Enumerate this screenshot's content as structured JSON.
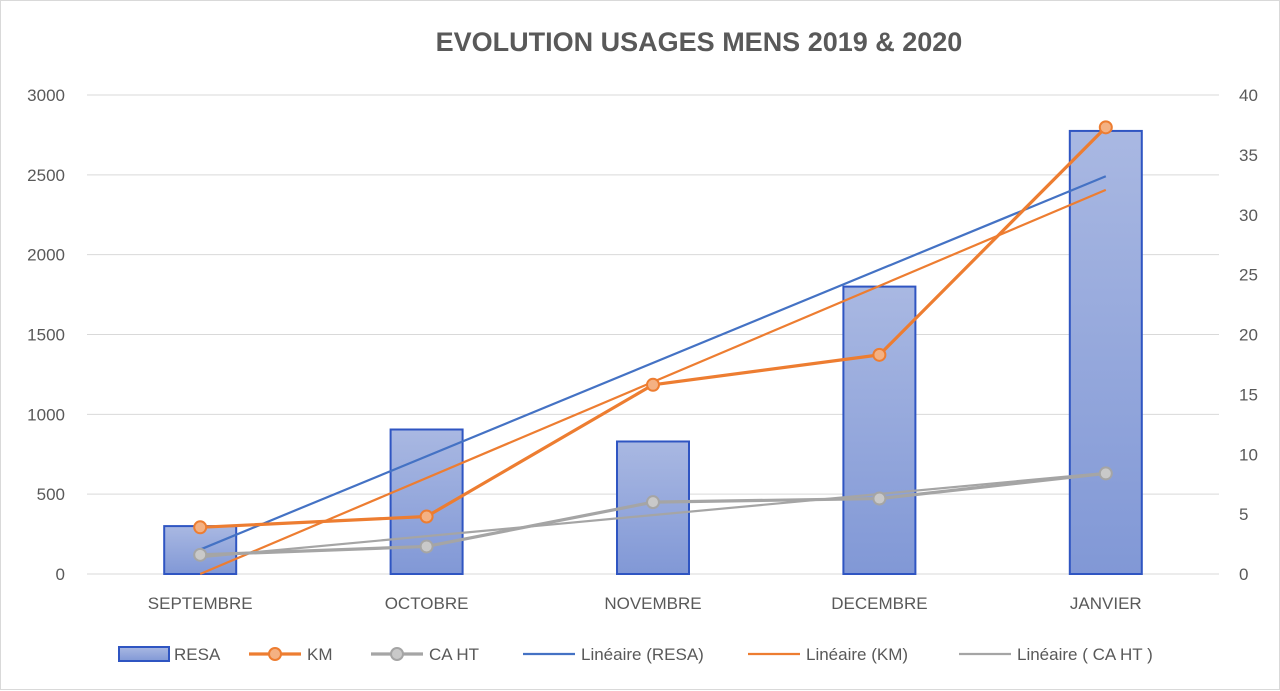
{
  "chart_data": {
    "type": "bar",
    "title": "EVOLUTION  USAGES MENS 2019 & 2020",
    "categories": [
      "SEPTEMBRE",
      "OCTOBRE",
      "NOVEMBRE",
      "DECEMBRE",
      "JANVIER"
    ],
    "y_left": {
      "ylim": [
        0,
        3000
      ],
      "ticks": [
        "0",
        "500",
        "1000",
        "1500",
        "2000",
        "2500",
        "3000"
      ]
    },
    "y_right": {
      "ylim": [
        0,
        40
      ],
      "ticks": [
        "0",
        "5",
        "10",
        "15",
        "20",
        "25",
        "30",
        "35",
        "40"
      ]
    },
    "grid": true,
    "legend_position": "bottom",
    "series": [
      {
        "name": "RESA",
        "kind": "bar",
        "axis": "left",
        "color": "#4472c4",
        "values": [
          300,
          905,
          830,
          1800,
          2775
        ]
      },
      {
        "name": "KM",
        "kind": "line-markers",
        "axis": "right",
        "color": "#ed7d31",
        "values": [
          3.9,
          4.8,
          15.8,
          18.3,
          37.3
        ]
      },
      {
        "name": "CA HT",
        "kind": "line-markers",
        "axis": "right",
        "color": "#a5a5a5",
        "values": [
          1.6,
          2.3,
          6.0,
          6.3,
          8.4
        ]
      },
      {
        "name": "Linéaire (RESA)",
        "kind": "trend",
        "of": "RESA",
        "axis": "left",
        "color": "#4472c4"
      },
      {
        "name": "Linéaire (KM)",
        "kind": "trend",
        "of": "KM",
        "axis": "right",
        "color": "#ed7d31"
      },
      {
        "name": "Linéaire ( CA HT )",
        "kind": "trend",
        "of": "CA HT",
        "axis": "right",
        "color": "#a5a5a5"
      }
    ]
  }
}
